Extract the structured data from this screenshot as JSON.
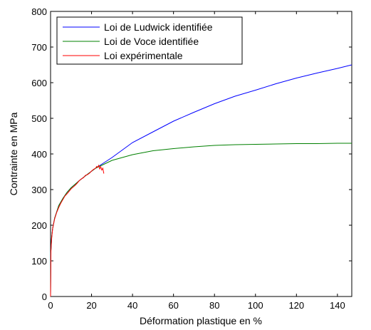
{
  "chart_data": {
    "type": "line",
    "title": "",
    "xlabel": "Déformation plastique en %",
    "ylabel": "Contrainte en MPa",
    "xlim": [
      0,
      147
    ],
    "ylim": [
      0,
      800
    ],
    "xticks": [
      0,
      20,
      40,
      60,
      80,
      100,
      120,
      140
    ],
    "yticks": [
      0,
      100,
      200,
      300,
      400,
      500,
      600,
      700,
      800
    ],
    "grid": false,
    "legend_position": "top-left",
    "series": [
      {
        "name": "Loi de Ludwick identifiée",
        "color": "#0000ff",
        "x": [
          0,
          0.1,
          0.5,
          1,
          2,
          4,
          6,
          8,
          10,
          14,
          18,
          22,
          26,
          30,
          40,
          50,
          60,
          70,
          80,
          90,
          100,
          110,
          120,
          130,
          140,
          147
        ],
        "y": [
          0,
          120,
          165,
          190,
          220,
          255,
          275,
          292,
          305,
          325,
          343,
          360,
          375,
          390,
          432,
          462,
          492,
          517,
          541,
          562,
          579,
          597,
          613,
          627,
          640,
          650
        ]
      },
      {
        "name": "Loi de Voce identifiée",
        "color": "#008000",
        "x": [
          0,
          0.1,
          0.5,
          1,
          2,
          4,
          6,
          8,
          10,
          14,
          18,
          22,
          26,
          30,
          40,
          50,
          60,
          70,
          80,
          90,
          100,
          110,
          120,
          130,
          140,
          147
        ],
        "y": [
          0,
          120,
          165,
          190,
          220,
          255,
          275,
          292,
          305,
          325,
          343,
          360,
          371,
          382,
          398,
          409,
          415,
          420,
          424,
          426,
          427,
          428,
          429,
          429,
          430,
          430
        ]
      },
      {
        "name": "Loi expérimentale",
        "color": "#ff0000",
        "x": [
          0,
          0.2,
          0.5,
          1,
          1.5,
          2,
          3,
          4,
          5,
          6,
          7,
          8,
          9,
          10,
          11,
          12,
          13,
          14,
          15,
          16,
          17,
          18,
          19,
          20,
          21,
          22,
          22.5,
          23,
          23.5,
          24,
          24.5,
          25,
          25.5,
          26
        ],
        "y": [
          0,
          130,
          160,
          190,
          205,
          218,
          236,
          250,
          262,
          272,
          282,
          288,
          295,
          302,
          307,
          312,
          318,
          325,
          330,
          333,
          340,
          342,
          346,
          352,
          357,
          360,
          365,
          363,
          368,
          358,
          364,
          355,
          360,
          345
        ]
      }
    ]
  }
}
